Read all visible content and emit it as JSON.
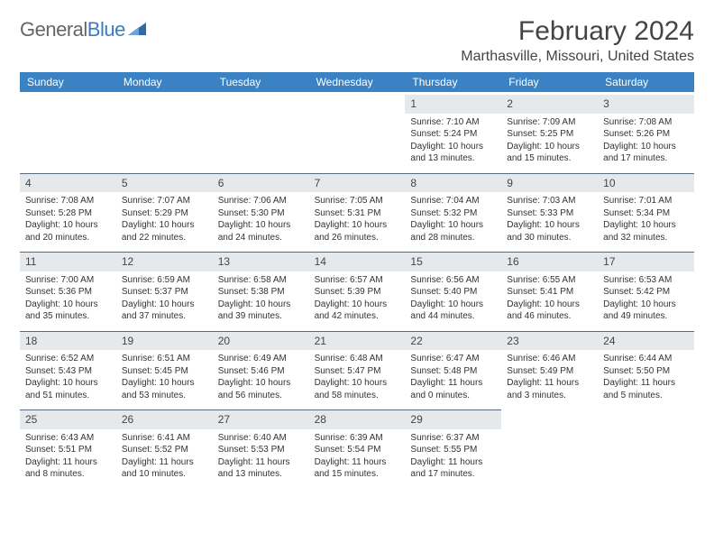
{
  "brand": {
    "part1": "General",
    "part2": "Blue"
  },
  "title": {
    "month": "February 2024",
    "location": "Marthasville, Missouri, United States"
  },
  "colors": {
    "header_bg": "#3a82c4",
    "header_text": "#ffffff",
    "daynum_bg": "#e6e9ec",
    "cell_border": "#5a6a7a",
    "body_text": "#333333",
    "brand_gray": "#666668",
    "brand_blue": "#3a7cbf"
  },
  "dayNames": [
    "Sunday",
    "Monday",
    "Tuesday",
    "Wednesday",
    "Thursday",
    "Friday",
    "Saturday"
  ],
  "weeks": [
    [
      null,
      null,
      null,
      null,
      {
        "n": "1",
        "sr": "7:10 AM",
        "ss": "5:24 PM",
        "dl": "10 hours and 13 minutes."
      },
      {
        "n": "2",
        "sr": "7:09 AM",
        "ss": "5:25 PM",
        "dl": "10 hours and 15 minutes."
      },
      {
        "n": "3",
        "sr": "7:08 AM",
        "ss": "5:26 PM",
        "dl": "10 hours and 17 minutes."
      }
    ],
    [
      {
        "n": "4",
        "sr": "7:08 AM",
        "ss": "5:28 PM",
        "dl": "10 hours and 20 minutes."
      },
      {
        "n": "5",
        "sr": "7:07 AM",
        "ss": "5:29 PM",
        "dl": "10 hours and 22 minutes."
      },
      {
        "n": "6",
        "sr": "7:06 AM",
        "ss": "5:30 PM",
        "dl": "10 hours and 24 minutes."
      },
      {
        "n": "7",
        "sr": "7:05 AM",
        "ss": "5:31 PM",
        "dl": "10 hours and 26 minutes."
      },
      {
        "n": "8",
        "sr": "7:04 AM",
        "ss": "5:32 PM",
        "dl": "10 hours and 28 minutes."
      },
      {
        "n": "9",
        "sr": "7:03 AM",
        "ss": "5:33 PM",
        "dl": "10 hours and 30 minutes."
      },
      {
        "n": "10",
        "sr": "7:01 AM",
        "ss": "5:34 PM",
        "dl": "10 hours and 32 minutes."
      }
    ],
    [
      {
        "n": "11",
        "sr": "7:00 AM",
        "ss": "5:36 PM",
        "dl": "10 hours and 35 minutes."
      },
      {
        "n": "12",
        "sr": "6:59 AM",
        "ss": "5:37 PM",
        "dl": "10 hours and 37 minutes."
      },
      {
        "n": "13",
        "sr": "6:58 AM",
        "ss": "5:38 PM",
        "dl": "10 hours and 39 minutes."
      },
      {
        "n": "14",
        "sr": "6:57 AM",
        "ss": "5:39 PM",
        "dl": "10 hours and 42 minutes."
      },
      {
        "n": "15",
        "sr": "6:56 AM",
        "ss": "5:40 PM",
        "dl": "10 hours and 44 minutes."
      },
      {
        "n": "16",
        "sr": "6:55 AM",
        "ss": "5:41 PM",
        "dl": "10 hours and 46 minutes."
      },
      {
        "n": "17",
        "sr": "6:53 AM",
        "ss": "5:42 PM",
        "dl": "10 hours and 49 minutes."
      }
    ],
    [
      {
        "n": "18",
        "sr": "6:52 AM",
        "ss": "5:43 PM",
        "dl": "10 hours and 51 minutes."
      },
      {
        "n": "19",
        "sr": "6:51 AM",
        "ss": "5:45 PM",
        "dl": "10 hours and 53 minutes."
      },
      {
        "n": "20",
        "sr": "6:49 AM",
        "ss": "5:46 PM",
        "dl": "10 hours and 56 minutes."
      },
      {
        "n": "21",
        "sr": "6:48 AM",
        "ss": "5:47 PM",
        "dl": "10 hours and 58 minutes."
      },
      {
        "n": "22",
        "sr": "6:47 AM",
        "ss": "5:48 PM",
        "dl": "11 hours and 0 minutes."
      },
      {
        "n": "23",
        "sr": "6:46 AM",
        "ss": "5:49 PM",
        "dl": "11 hours and 3 minutes."
      },
      {
        "n": "24",
        "sr": "6:44 AM",
        "ss": "5:50 PM",
        "dl": "11 hours and 5 minutes."
      }
    ],
    [
      {
        "n": "25",
        "sr": "6:43 AM",
        "ss": "5:51 PM",
        "dl": "11 hours and 8 minutes."
      },
      {
        "n": "26",
        "sr": "6:41 AM",
        "ss": "5:52 PM",
        "dl": "11 hours and 10 minutes."
      },
      {
        "n": "27",
        "sr": "6:40 AM",
        "ss": "5:53 PM",
        "dl": "11 hours and 13 minutes."
      },
      {
        "n": "28",
        "sr": "6:39 AM",
        "ss": "5:54 PM",
        "dl": "11 hours and 15 minutes."
      },
      {
        "n": "29",
        "sr": "6:37 AM",
        "ss": "5:55 PM",
        "dl": "11 hours and 17 minutes."
      },
      null,
      null
    ]
  ],
  "labels": {
    "sunrise": "Sunrise: ",
    "sunset": "Sunset: ",
    "daylight": "Daylight: "
  }
}
